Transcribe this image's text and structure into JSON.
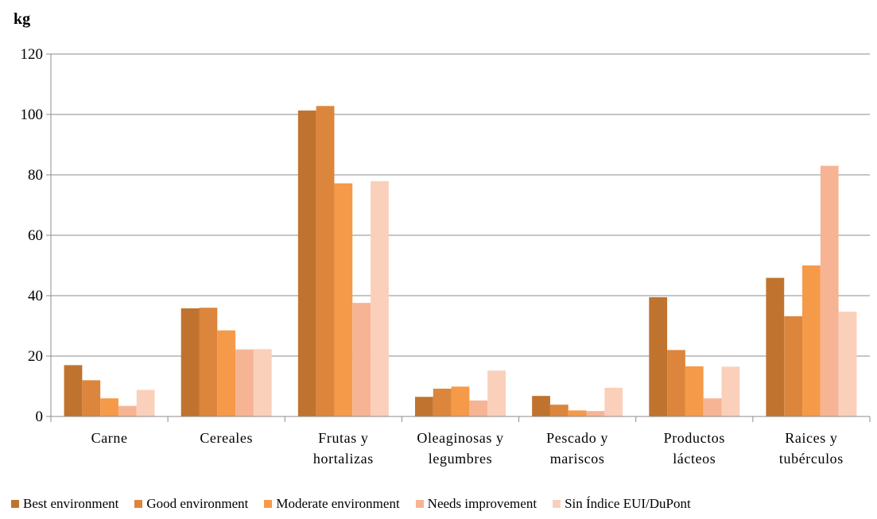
{
  "chart_data": {
    "type": "bar",
    "unit_label": "kg",
    "ylim": [
      0,
      120
    ],
    "yticks": [
      0,
      20,
      40,
      60,
      80,
      100,
      120
    ],
    "grid": true,
    "legend_position": "bottom",
    "categories": [
      [
        "Carne"
      ],
      [
        "Cereales"
      ],
      [
        "Frutas y",
        "hortalizas"
      ],
      [
        "Oleaginosas y",
        "legumbres"
      ],
      [
        "Pescado y",
        "mariscos"
      ],
      [
        "Productos",
        "lácteos"
      ],
      [
        "Raices y",
        "tubérculos"
      ]
    ],
    "series": [
      {
        "name": "Best environment",
        "color": "#C0732F",
        "values": [
          17,
          35.8,
          101.3,
          6.5,
          6.8,
          39.5,
          45.9
        ]
      },
      {
        "name": "Good environment",
        "color": "#DC853C",
        "values": [
          12,
          36,
          102.8,
          9.2,
          3.9,
          22,
          33.2
        ]
      },
      {
        "name": "Moderate environment",
        "color": "#F59A48",
        "values": [
          6,
          28.5,
          77.2,
          9.9,
          2,
          16.6,
          50
        ]
      },
      {
        "name": "Needs improvement",
        "color": "#F7B494",
        "values": [
          3.5,
          22.2,
          37.6,
          5.3,
          1.8,
          6,
          83
        ]
      },
      {
        "name": "Sin Índice EUI/DuPont",
        "color": "#FAD0BA",
        "values": [
          8.8,
          22.3,
          77.9,
          15.2,
          9.5,
          16.5,
          34.7
        ]
      }
    ]
  }
}
